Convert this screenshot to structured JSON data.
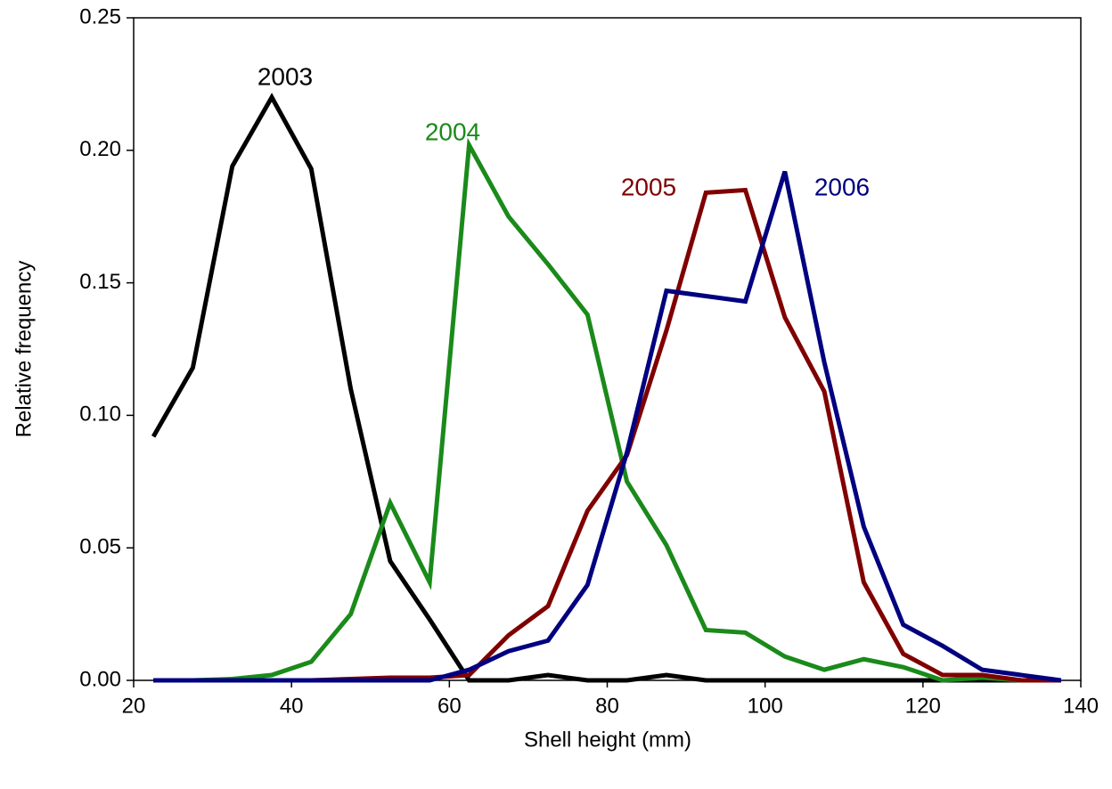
{
  "chart_data": {
    "type": "line",
    "x_label": "Shell height (mm)",
    "y_label": "Relative frequency",
    "x": [
      22.5,
      27.5,
      32.5,
      37.5,
      42.5,
      47.5,
      52.5,
      57.5,
      62.5,
      67.5,
      72.5,
      77.5,
      82.5,
      87.5,
      92.5,
      97.5,
      102.5,
      107.5,
      112.5,
      117.5,
      122.5,
      127.5,
      132.5,
      137.5
    ],
    "series": [
      {
        "name": "2003",
        "color": "#000000",
        "values": [
          0.092,
          0.118,
          0.194,
          0.22,
          0.193,
          0.11,
          0.045,
          0.023,
          0.0,
          0.0,
          0.002,
          0.0,
          0.0,
          0.002,
          0.0,
          0.0,
          0.0,
          0.0,
          0.0,
          0.0,
          0.0,
          0.0,
          0.0,
          0.0
        ]
      },
      {
        "name": "2004",
        "color": "#1a8a1a",
        "values": [
          0.0,
          0.0,
          0.0005,
          0.002,
          0.007,
          0.025,
          0.067,
          0.037,
          0.202,
          0.175,
          0.157,
          0.138,
          0.075,
          0.051,
          0.019,
          0.018,
          0.009,
          0.004,
          0.008,
          0.005,
          0.0,
          0.001,
          0.0,
          0.0
        ]
      },
      {
        "name": "2005",
        "color": "#800000",
        "values": [
          0.0,
          0.0,
          0.0,
          0.0,
          0.0,
          0.0005,
          0.001,
          0.001,
          0.002,
          0.017,
          0.028,
          0.064,
          0.085,
          0.132,
          0.184,
          0.185,
          0.137,
          0.109,
          0.037,
          0.01,
          0.002,
          0.002,
          0.0,
          0.0
        ]
      },
      {
        "name": "2006",
        "color": "#000080",
        "values": [
          0.0,
          0.0,
          0.0,
          0.0,
          0.0,
          0.0,
          0.0,
          0.0,
          0.004,
          0.011,
          0.015,
          0.036,
          0.086,
          0.147,
          0.145,
          0.143,
          0.192,
          0.12,
          0.058,
          0.021,
          0.013,
          0.004,
          0.002,
          0.0
        ]
      }
    ],
    "xlim": [
      20,
      140
    ],
    "xticks": [
      20,
      40,
      60,
      80,
      100,
      120,
      140
    ],
    "ylim": [
      0,
      0.25
    ],
    "yticks": [
      {
        "value": 0,
        "label": "0.00"
      },
      {
        "value": 0.05,
        "label": "0.05"
      },
      {
        "value": 0.1,
        "label": "0.10"
      },
      {
        "value": 0.15,
        "label": "0.15"
      },
      {
        "value": 0.2,
        "label": "0.20"
      },
      {
        "value": 0.25,
        "label": "0.25"
      }
    ]
  }
}
